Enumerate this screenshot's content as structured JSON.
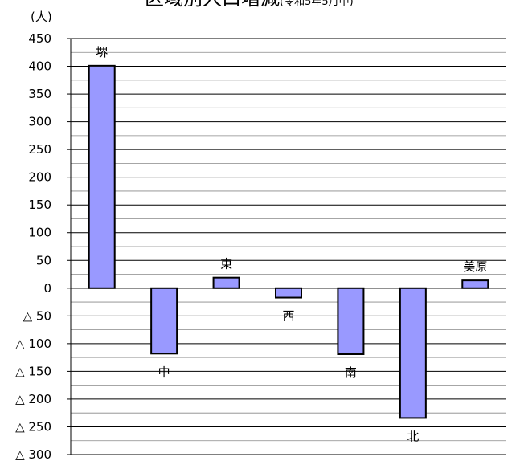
{
  "chart_data": {
    "type": "bar",
    "title": "区域別人口増減",
    "title_note": "(令和5年5月中)",
    "y_unit": "(人)",
    "ylim": [
      -300,
      450
    ],
    "ytick_values": [
      450,
      400,
      350,
      300,
      250,
      200,
      150,
      100,
      50,
      0,
      -50,
      -100,
      -150,
      -200,
      -250,
      -300
    ],
    "ytick_labels": [
      "450",
      "400",
      "350",
      "300",
      "250",
      "200",
      "150",
      "100",
      "50",
      "0",
      "△ 50",
      "△ 100",
      "△ 150",
      "△ 200",
      "△ 250",
      "△ 300"
    ],
    "minor_grid_step": 25,
    "grid": true,
    "legend": false,
    "categories": [
      "堺",
      "中",
      "東",
      "西",
      "南",
      "北",
      "美原"
    ],
    "values": [
      401,
      -118,
      19,
      -17,
      -119,
      -234,
      14
    ],
    "bar_color": "#9999ff",
    "bar_border_color": "#000000"
  }
}
